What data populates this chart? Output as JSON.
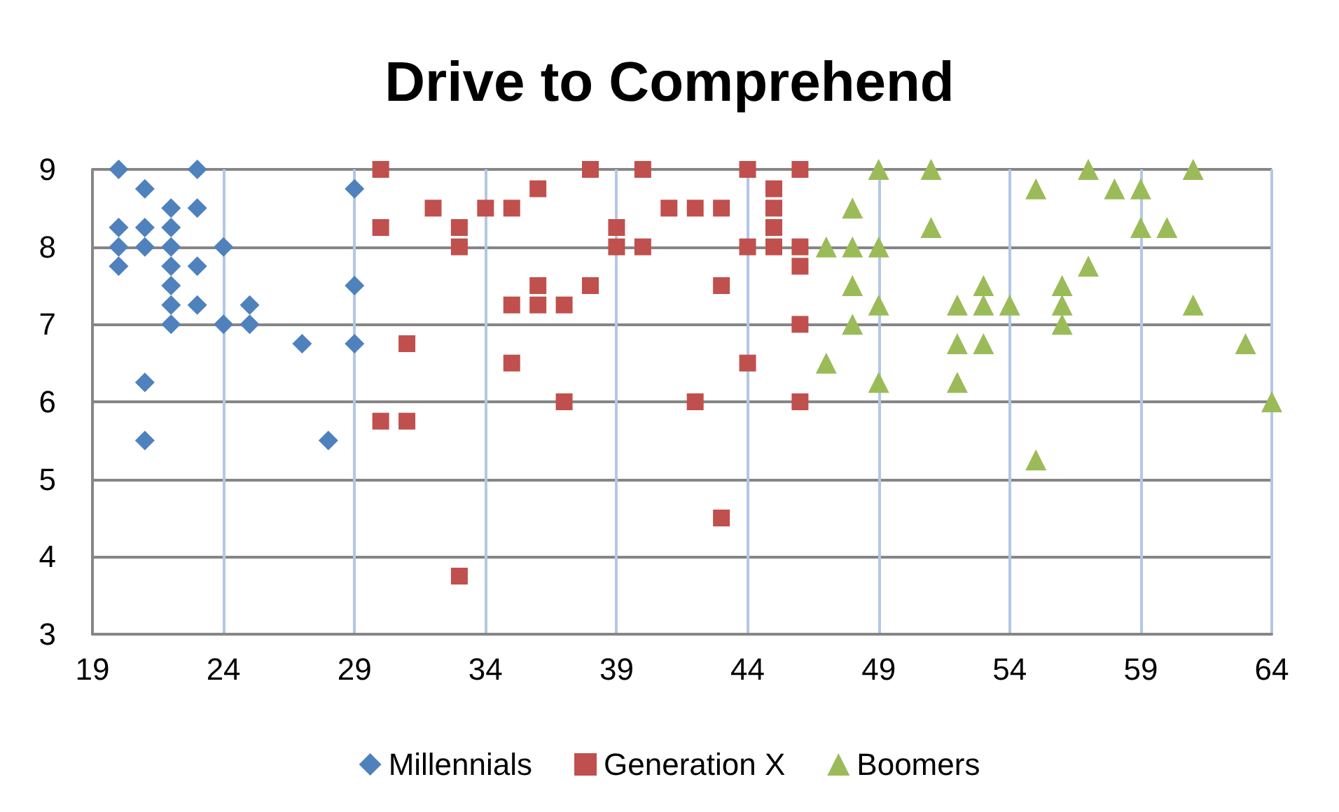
{
  "chart_data": {
    "type": "scatter",
    "title": "Drive to Comprehend",
    "xlim": [
      19,
      64
    ],
    "xticks": [
      19,
      24,
      29,
      34,
      39,
      44,
      49,
      54,
      59,
      64
    ],
    "ylim": [
      3,
      9
    ],
    "yticks": [
      3,
      4,
      5,
      6,
      7,
      8,
      9
    ],
    "grid": true,
    "legend": "bottom",
    "series": [
      {
        "name": "Millennials",
        "color": "#4f81bd",
        "marker": "diamond",
        "x": [
          20,
          21,
          23,
          22,
          23,
          20,
          21,
          22,
          20,
          21,
          22,
          24,
          20,
          22,
          23,
          22,
          22,
          23,
          25,
          22,
          24,
          25,
          27,
          29,
          21,
          21,
          28,
          29,
          29
        ],
        "values": [
          9,
          8.75,
          9,
          8.5,
          8.5,
          8.25,
          8.25,
          8.25,
          8,
          8,
          8,
          8,
          7.75,
          7.75,
          7.75,
          7.5,
          7.25,
          7.25,
          7.25,
          7,
          7,
          7,
          6.75,
          6.75,
          6.25,
          5.5,
          5.5,
          8.75,
          7.5
        ]
      },
      {
        "name": "Generation X",
        "color": "#c0504d",
        "marker": "square",
        "x": [
          30,
          30,
          31,
          30,
          31,
          32,
          33,
          33,
          33,
          34,
          35,
          35,
          35,
          36,
          36,
          36,
          37,
          37,
          38,
          38,
          39,
          39,
          40,
          40,
          41,
          42,
          42,
          43,
          43,
          43,
          44,
          44,
          44,
          45,
          45,
          45,
          45,
          46,
          46,
          46,
          46,
          46
        ],
        "values": [
          9,
          8.25,
          6.75,
          5.75,
          5.75,
          8.5,
          8.25,
          8,
          3.75,
          8.5,
          8.5,
          7.25,
          6.5,
          8.75,
          7.5,
          7.25,
          7.25,
          6,
          9,
          7.5,
          8.25,
          8,
          9,
          8,
          8.5,
          8.5,
          6,
          8.5,
          7.5,
          4.5,
          9,
          8,
          6.5,
          8.75,
          8.5,
          8.25,
          8,
          9,
          8,
          7.75,
          7,
          6
        ]
      },
      {
        "name": "Boomers",
        "color": "#9bbb59",
        "marker": "triangle",
        "x": [
          47,
          47,
          48,
          48,
          48,
          48,
          49,
          49,
          49,
          49,
          51,
          51,
          52,
          52,
          52,
          53,
          53,
          53,
          54,
          55,
          55,
          56,
          56,
          56,
          57,
          57,
          58,
          59,
          59,
          60,
          61,
          61,
          63,
          64
        ],
        "values": [
          8,
          6.5,
          8.5,
          8,
          7.5,
          7,
          9,
          8,
          7.25,
          6.25,
          9,
          8.25,
          7.25,
          6.75,
          6.25,
          7.5,
          7.25,
          6.75,
          7.25,
          8.75,
          5.25,
          7.5,
          7.25,
          7,
          9,
          7.75,
          8.75,
          8.75,
          8.25,
          8.25,
          9,
          7.25,
          6.75,
          6
        ]
      }
    ]
  }
}
